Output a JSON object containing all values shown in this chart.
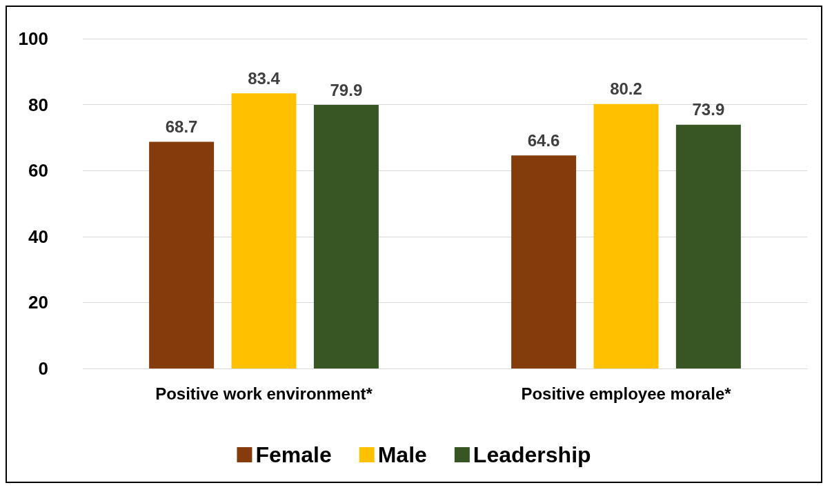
{
  "chart_data": {
    "type": "bar",
    "categories": [
      "Positive work environment*",
      "Positive employee morale*"
    ],
    "series": [
      {
        "name": "Female",
        "color": "#843c0c",
        "values": [
          68.7,
          64.6
        ]
      },
      {
        "name": "Male",
        "color": "#ffc000",
        "values": [
          83.4,
          80.2
        ]
      },
      {
        "name": "Leadership",
        "color": "#375623",
        "values": [
          79.9,
          73.9
        ]
      }
    ],
    "ylim": [
      0,
      100
    ],
    "yticks": [
      0,
      20,
      40,
      60,
      80,
      100
    ],
    "grid": "y",
    "legend": "bottom",
    "data_labels": true
  }
}
